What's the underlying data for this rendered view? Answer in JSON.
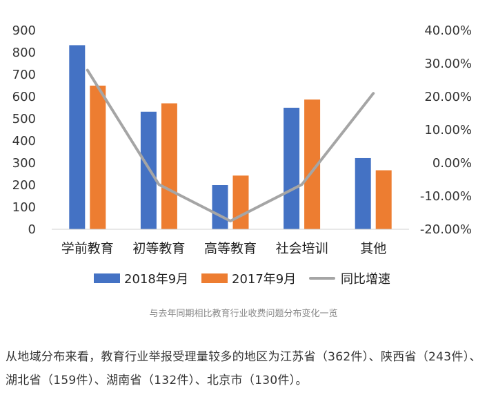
{
  "chart_data": {
    "type": "bar",
    "categories": [
      "学前教育",
      "初等教育",
      "高等教育",
      "社会培训",
      "其他"
    ],
    "series": [
      {
        "name": "2018年9月",
        "kind": "bar",
        "color": "#4472C4",
        "axis": "left",
        "values": [
          833,
          532,
          200,
          550,
          322
        ]
      },
      {
        "name": "2017年9月",
        "kind": "bar",
        "color": "#ED7D31",
        "axis": "left",
        "values": [
          650,
          570,
          243,
          587,
          267
        ]
      },
      {
        "name": "同比增速",
        "kind": "line",
        "color": "#A5A5A5",
        "axis": "right",
        "values": [
          0.28,
          -0.065,
          -0.175,
          -0.065,
          0.21
        ]
      }
    ],
    "y_left": {
      "min": 0,
      "max": 900,
      "step": 100,
      "tick_labels": [
        "0",
        "100",
        "200",
        "300",
        "400",
        "500",
        "600",
        "700",
        "800",
        "900"
      ]
    },
    "y_right": {
      "min": -0.2,
      "max": 0.4,
      "step": 0.1,
      "tick_labels": [
        "-20.00%",
        "-10.00%",
        "0.00%",
        "10.00%",
        "20.00%",
        "30.00%",
        "40.00%"
      ]
    },
    "legend_position": "bottom",
    "grid": false
  },
  "caption": "与去年同期相比教育行业收费问题分布变化一览",
  "paragraph": "从地域分布来看，教育行业举报受理量较多的地区为江苏省（362件）、陕西省（243件）、湖北省（159件）、湖南省（132件）、北京市（130件）。"
}
